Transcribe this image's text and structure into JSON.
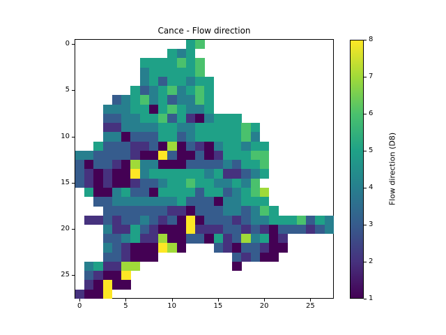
{
  "title": "Cance - Flow direction",
  "colorbar": {
    "label": "Flow direction (D8)",
    "tick_labels": [
      "1",
      "2",
      "3",
      "4",
      "5",
      "6",
      "7",
      "8"
    ],
    "min": 1,
    "max": 8
  },
  "colormap": {
    "name": "viridis",
    "colors": {
      "1": "#440154",
      "2": "#46327e",
      "3": "#365c8d",
      "4": "#277f8e",
      "5": "#1fa187",
      "6": "#4ac16d",
      "7": "#a0da39",
      "8": "#fde725"
    }
  },
  "chart_data": {
    "type": "heatmap",
    "title": "Cance - Flow direction",
    "xlabel": "",
    "ylabel": "",
    "colorbar_label": "Flow direction (D8)",
    "value_range": [
      1,
      8
    ],
    "nodata_value": 0,
    "x_ticks": [
      0,
      5,
      10,
      15,
      20,
      25
    ],
    "y_ticks": [
      0,
      5,
      10,
      15,
      20,
      25
    ],
    "n_cols": 28,
    "n_rows": 28,
    "grid": [
      [
        0,
        0,
        0,
        0,
        0,
        0,
        0,
        0,
        0,
        0,
        0,
        0,
        5,
        6,
        0,
        0,
        0,
        0,
        0,
        0,
        0,
        0,
        0,
        0,
        0,
        0,
        0,
        0
      ],
      [
        0,
        0,
        0,
        0,
        0,
        0,
        0,
        0,
        0,
        0,
        5,
        4,
        5,
        0,
        0,
        0,
        0,
        0,
        0,
        0,
        0,
        0,
        0,
        0,
        0,
        0,
        0,
        0
      ],
      [
        0,
        0,
        0,
        0,
        0,
        0,
        0,
        5,
        5,
        5,
        5,
        6,
        5,
        6,
        0,
        0,
        0,
        0,
        0,
        0,
        0,
        0,
        0,
        0,
        0,
        0,
        0,
        0
      ],
      [
        0,
        0,
        0,
        0,
        0,
        0,
        0,
        4,
        5,
        5,
        5,
        5,
        5,
        6,
        0,
        0,
        0,
        0,
        0,
        0,
        0,
        0,
        0,
        0,
        0,
        0,
        0,
        0
      ],
      [
        0,
        0,
        0,
        0,
        0,
        0,
        0,
        4,
        5,
        3,
        5,
        5,
        4,
        5,
        5,
        0,
        0,
        0,
        0,
        0,
        0,
        0,
        0,
        0,
        0,
        0,
        0,
        0
      ],
      [
        0,
        0,
        0,
        0,
        0,
        0,
        5,
        3,
        4,
        5,
        6,
        4,
        5,
        6,
        5,
        0,
        0,
        0,
        0,
        0,
        0,
        0,
        0,
        0,
        0,
        0,
        0,
        0
      ],
      [
        0,
        0,
        0,
        0,
        3,
        4,
        5,
        6,
        4,
        5,
        3,
        4,
        4,
        6,
        5,
        0,
        0,
        0,
        0,
        0,
        0,
        0,
        0,
        0,
        0,
        0,
        0,
        0
      ],
      [
        0,
        0,
        0,
        4,
        4,
        4,
        5,
        5,
        1,
        5,
        6,
        5,
        4,
        4,
        5,
        0,
        0,
        0,
        0,
        0,
        0,
        0,
        0,
        0,
        0,
        0,
        0,
        0
      ],
      [
        0,
        0,
        0,
        3,
        3,
        4,
        4,
        5,
        5,
        6,
        3,
        5,
        2,
        1,
        4,
        5,
        5,
        5,
        0,
        0,
        0,
        0,
        0,
        0,
        0,
        0,
        0,
        0
      ],
      [
        0,
        0,
        0,
        2,
        2,
        4,
        4,
        4,
        4,
        5,
        5,
        4,
        4,
        5,
        5,
        5,
        5,
        5,
        6,
        5,
        0,
        0,
        0,
        0,
        0,
        0,
        0,
        0
      ],
      [
        0,
        0,
        0,
        4,
        4,
        1,
        3,
        3,
        3,
        5,
        5,
        3,
        4,
        5,
        5,
        5,
        5,
        5,
        6,
        4,
        0,
        0,
        0,
        0,
        0,
        0,
        0,
        0
      ],
      [
        0,
        0,
        5,
        3,
        3,
        3,
        2,
        2,
        3,
        1,
        7,
        1,
        3,
        2,
        1,
        4,
        5,
        5,
        4,
        5,
        5,
        0,
        0,
        0,
        0,
        0,
        0,
        0
      ],
      [
        4,
        4,
        3,
        3,
        3,
        3,
        2,
        1,
        1,
        8,
        3,
        1,
        1,
        3,
        1,
        2,
        5,
        5,
        5,
        6,
        6,
        0,
        0,
        0,
        0,
        0,
        0,
        0
      ],
      [
        3,
        1,
        3,
        3,
        2,
        1,
        7,
        4,
        4,
        1,
        1,
        1,
        3,
        3,
        3,
        3,
        4,
        3,
        5,
        5,
        6,
        0,
        0,
        0,
        0,
        0,
        0,
        0
      ],
      [
        3,
        2,
        1,
        2,
        1,
        1,
        8,
        4,
        5,
        5,
        5,
        5,
        5,
        5,
        4,
        5,
        2,
        2,
        3,
        4,
        5,
        0,
        0,
        0,
        0,
        0,
        0,
        0
      ],
      [
        3,
        2,
        1,
        2,
        1,
        1,
        2,
        3,
        3,
        4,
        5,
        5,
        6,
        5,
        5,
        4,
        4,
        5,
        4,
        6,
        0,
        0,
        0,
        0,
        0,
        0,
        0,
        0
      ],
      [
        0,
        5,
        1,
        1,
        4,
        5,
        3,
        3,
        1,
        5,
        5,
        5,
        5,
        3,
        5,
        5,
        3,
        4,
        5,
        6,
        7,
        0,
        0,
        0,
        0,
        0,
        0,
        0
      ],
      [
        0,
        0,
        3,
        3,
        4,
        4,
        4,
        4,
        4,
        4,
        4,
        5,
        3,
        3,
        3,
        1,
        4,
        4,
        5,
        5,
        5,
        0,
        0,
        0,
        0,
        0,
        0,
        0
      ],
      [
        0,
        0,
        0,
        3,
        3,
        3,
        3,
        3,
        3,
        3,
        2,
        2,
        1,
        3,
        3,
        3,
        4,
        4,
        3,
        4,
        6,
        5,
        0,
        0,
        0,
        0,
        0,
        0
      ],
      [
        0,
        2,
        2,
        3,
        2,
        3,
        3,
        4,
        3,
        2,
        3,
        1,
        8,
        1,
        3,
        3,
        3,
        2,
        3,
        4,
        4,
        5,
        5,
        5,
        6,
        3,
        5,
        4
      ],
      [
        0,
        0,
        0,
        4,
        2,
        2,
        5,
        3,
        2,
        1,
        1,
        1,
        8,
        2,
        2,
        2,
        3,
        3,
        2,
        3,
        2,
        1,
        3,
        3,
        3,
        2,
        3,
        4
      ],
      [
        0,
        0,
        0,
        3,
        3,
        4,
        5,
        2,
        2,
        7,
        1,
        1,
        3,
        3,
        1,
        5,
        2,
        3,
        7,
        4,
        5,
        1,
        2,
        0,
        0,
        0,
        0,
        0
      ],
      [
        0,
        0,
        0,
        4,
        3,
        2,
        1,
        1,
        1,
        8,
        7,
        1,
        0,
        0,
        0,
        3,
        2,
        1,
        3,
        3,
        2,
        1,
        1,
        0,
        0,
        0,
        0,
        0
      ],
      [
        0,
        0,
        0,
        3,
        3,
        2,
        1,
        1,
        1,
        0,
        0,
        0,
        0,
        0,
        0,
        0,
        0,
        3,
        2,
        3,
        1,
        1,
        0,
        0,
        0,
        0,
        0,
        0
      ],
      [
        0,
        4,
        5,
        2,
        2,
        7,
        7,
        0,
        0,
        0,
        0,
        0,
        0,
        0,
        0,
        0,
        0,
        1,
        0,
        0,
        0,
        0,
        0,
        0,
        0,
        0,
        0,
        0
      ],
      [
        0,
        3,
        2,
        1,
        1,
        8,
        0,
        0,
        0,
        0,
        0,
        0,
        0,
        0,
        0,
        0,
        0,
        0,
        0,
        0,
        0,
        0,
        0,
        0,
        0,
        0,
        0,
        0
      ],
      [
        0,
        2,
        1,
        8,
        1,
        1,
        0,
        0,
        0,
        0,
        0,
        0,
        0,
        0,
        0,
        0,
        0,
        0,
        0,
        0,
        0,
        0,
        0,
        0,
        0,
        0,
        0,
        0
      ],
      [
        2,
        1,
        1,
        8,
        0,
        0,
        0,
        0,
        0,
        0,
        0,
        0,
        0,
        0,
        0,
        0,
        0,
        0,
        0,
        0,
        0,
        0,
        0,
        0,
        0,
        0,
        0,
        0
      ]
    ]
  }
}
